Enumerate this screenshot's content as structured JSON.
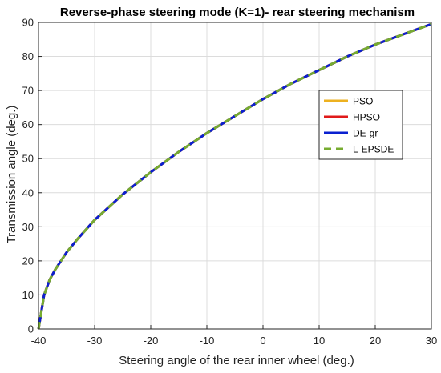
{
  "chart_data": {
    "type": "line",
    "title": "Reverse-phase steering mode (K=1)- rear steering mechanism",
    "xlabel": "Steering angle of the rear inner wheel (deg.)",
    "ylabel": "Transmission angle (deg.)",
    "xlim": [
      -40,
      30
    ],
    "ylim": [
      0,
      90
    ],
    "xticks": [
      "-40",
      "-30",
      "-20",
      "-10",
      "0",
      "10",
      "20",
      "30"
    ],
    "yticks": [
      "0",
      "10",
      "20",
      "30",
      "40",
      "50",
      "60",
      "70",
      "80",
      "90"
    ],
    "grid": true,
    "legend_position": "right",
    "x": [
      -40,
      -39.5,
      -39,
      -38,
      -37,
      -36,
      -35,
      -33,
      -30,
      -25,
      -20,
      -15,
      -10,
      -5,
      0,
      5,
      10,
      15,
      20,
      25,
      30
    ],
    "series": [
      {
        "name": "PSO",
        "color": "#EDB120",
        "dash": "solid",
        "values": [
          0,
          5,
          10,
          14.5,
          17.5,
          20,
          22.5,
          26.5,
          32,
          39.5,
          46,
          52,
          57.5,
          62.5,
          67.5,
          72,
          76,
          80,
          83.5,
          86.5,
          89.5
        ]
      },
      {
        "name": "HPSO",
        "color": "#E01A1A",
        "dash": "solid",
        "values": [
          0,
          5,
          10,
          14.5,
          17.5,
          20,
          22.5,
          26.5,
          32,
          39.5,
          46,
          52,
          57.5,
          62.5,
          67.5,
          72,
          76,
          80,
          83.5,
          86.5,
          89.5
        ]
      },
      {
        "name": "DE-gr",
        "color": "#0A20D0",
        "dash": "solid",
        "values": [
          0,
          5,
          10,
          14.5,
          17.5,
          20,
          22.5,
          26.5,
          32,
          39.5,
          46,
          52,
          57.5,
          62.5,
          67.5,
          72,
          76,
          80,
          83.5,
          86.5,
          89.5
        ]
      },
      {
        "name": "L-EPSDE",
        "color": "#77AC30",
        "dash": "dashed",
        "values": [
          0,
          5,
          10,
          14.5,
          17.5,
          20,
          22.5,
          26.5,
          32,
          39.5,
          46,
          52,
          57.5,
          62.5,
          67.5,
          72,
          76,
          80,
          83.5,
          86.5,
          89.5
        ]
      }
    ]
  }
}
